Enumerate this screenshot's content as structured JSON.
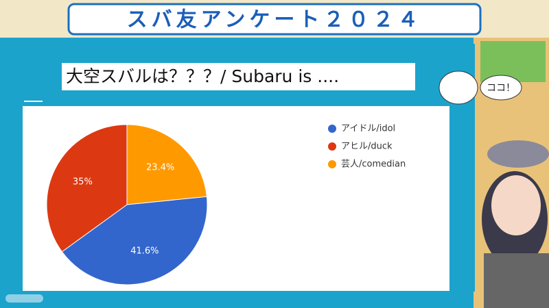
{
  "header": {
    "title": "スバ友アンケート２０２４"
  },
  "speech": "ココ！",
  "chart_data": {
    "type": "pie",
    "title": "大空スバルは？？？/ Subaru is ....",
    "categories": [
      "アイドル/idol",
      "アヒル/duck",
      "芸人/comedian"
    ],
    "values": [
      41.6,
      35,
      23.4
    ],
    "value_labels": [
      "41.6%",
      "35%",
      "23.4%"
    ],
    "colors": [
      "#3366cc",
      "#dc3912",
      "#ff9900"
    ]
  }
}
